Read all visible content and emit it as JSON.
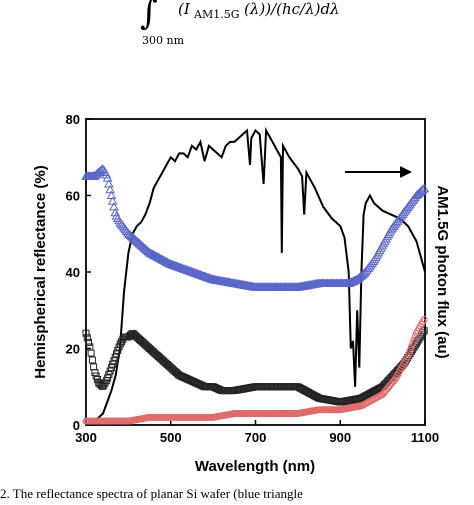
{
  "formula": {
    "body": "(I",
    "subscript": "AM1.5G",
    "rest": "(λ))/(hc/λ)dλ",
    "lower_limit": "300 nm"
  },
  "caption": "2. The reflectance spectra of planar Si wafer (blue triangle",
  "colors": {
    "am15g": "#000000",
    "planar": "#5a66c8",
    "black_square": "#222222",
    "red_circle": "#e06a6a",
    "axis": "#000000"
  },
  "chart_data": {
    "type": "line",
    "xlabel": "Wavelength (nm)",
    "ylabel": "Hemispherical reflectance (%)",
    "y2label": "AM1.5G photon flux (au)",
    "xlim": [
      300,
      1100
    ],
    "ylim": [
      0,
      80
    ],
    "xticks": [
      300,
      500,
      700,
      900,
      1100
    ],
    "yticks": [
      0,
      20,
      40,
      60,
      80
    ],
    "grid": false,
    "legend": "none",
    "annotation": "arrow pointing to right axis",
    "series": [
      {
        "key": "am15g",
        "marker": "none",
        "x": [
          300,
          320,
          340,
          350,
          360,
          370,
          380,
          390,
          400,
          410,
          420,
          430,
          440,
          450,
          460,
          470,
          480,
          490,
          500,
          510,
          520,
          530,
          540,
          550,
          560,
          570,
          580,
          590,
          600,
          610,
          620,
          630,
          640,
          650,
          660,
          670,
          680,
          687,
          690,
          700,
          710,
          719,
          725,
          740,
          750,
          760,
          762,
          765,
          780,
          800,
          810,
          815,
          820,
          830,
          840,
          860,
          880,
          900,
          910,
          920,
          925,
          930,
          935,
          940,
          945,
          950,
          955,
          960,
          970,
          980,
          1000,
          1020,
          1040,
          1060,
          1080,
          1090,
          1100
        ],
        "y": [
          0,
          1,
          3,
          6,
          9,
          13,
          20,
          35,
          45,
          50,
          52,
          53,
          55,
          58,
          62,
          64,
          66,
          68,
          70,
          69,
          71,
          71,
          70,
          73,
          72,
          74,
          69,
          73,
          72,
          71,
          70,
          73,
          74,
          74,
          75,
          76,
          77,
          68,
          75,
          77,
          76,
          63,
          77,
          74,
          72,
          70,
          45,
          73,
          70,
          67,
          65,
          55,
          66,
          64,
          62,
          57,
          54,
          52,
          49,
          40,
          20,
          22,
          10,
          30,
          15,
          40,
          55,
          58,
          60,
          58,
          56,
          55,
          54,
          52,
          48,
          44,
          40
        ]
      },
      {
        "key": "planar",
        "marker": "triangle",
        "x": [
          300,
          320,
          340,
          350,
          360,
          370,
          380,
          400,
          450,
          500,
          550,
          600,
          650,
          700,
          750,
          800,
          850,
          880,
          900,
          920,
          940,
          960,
          980,
          1000,
          1020,
          1040,
          1060,
          1080,
          1100
        ],
        "y": [
          65,
          65,
          67,
          65,
          60,
          55,
          53,
          50,
          45,
          42,
          40,
          38,
          37,
          36,
          36,
          36,
          37,
          37,
          37,
          37,
          38,
          40,
          43,
          47,
          51,
          54,
          57,
          60,
          62
        ]
      },
      {
        "key": "black_square",
        "marker": "square",
        "x": [
          300,
          310,
          320,
          330,
          340,
          350,
          360,
          370,
          380,
          390,
          400,
          410,
          420,
          430,
          440,
          460,
          480,
          500,
          520,
          540,
          560,
          580,
          600,
          620,
          650,
          700,
          750,
          800,
          850,
          900,
          950,
          1000,
          1050,
          1100
        ],
        "y": [
          24,
          20,
          14,
          11,
          10,
          12,
          15,
          18,
          21,
          23,
          23,
          24,
          23,
          22,
          21,
          19,
          17,
          15,
          13,
          12,
          11,
          10,
          10,
          9,
          9,
          10,
          10,
          10,
          7,
          6,
          7,
          10,
          16,
          25
        ]
      },
      {
        "key": "red_circle",
        "marker": "circle",
        "x": [
          300,
          350,
          400,
          450,
          500,
          550,
          600,
          650,
          700,
          750,
          800,
          850,
          900,
          950,
          1000,
          1030,
          1060,
          1080,
          1100
        ],
        "y": [
          1,
          1,
          1,
          2,
          2,
          2,
          2,
          3,
          3,
          3,
          3,
          4,
          4,
          5,
          8,
          12,
          18,
          24,
          28
        ]
      }
    ]
  }
}
